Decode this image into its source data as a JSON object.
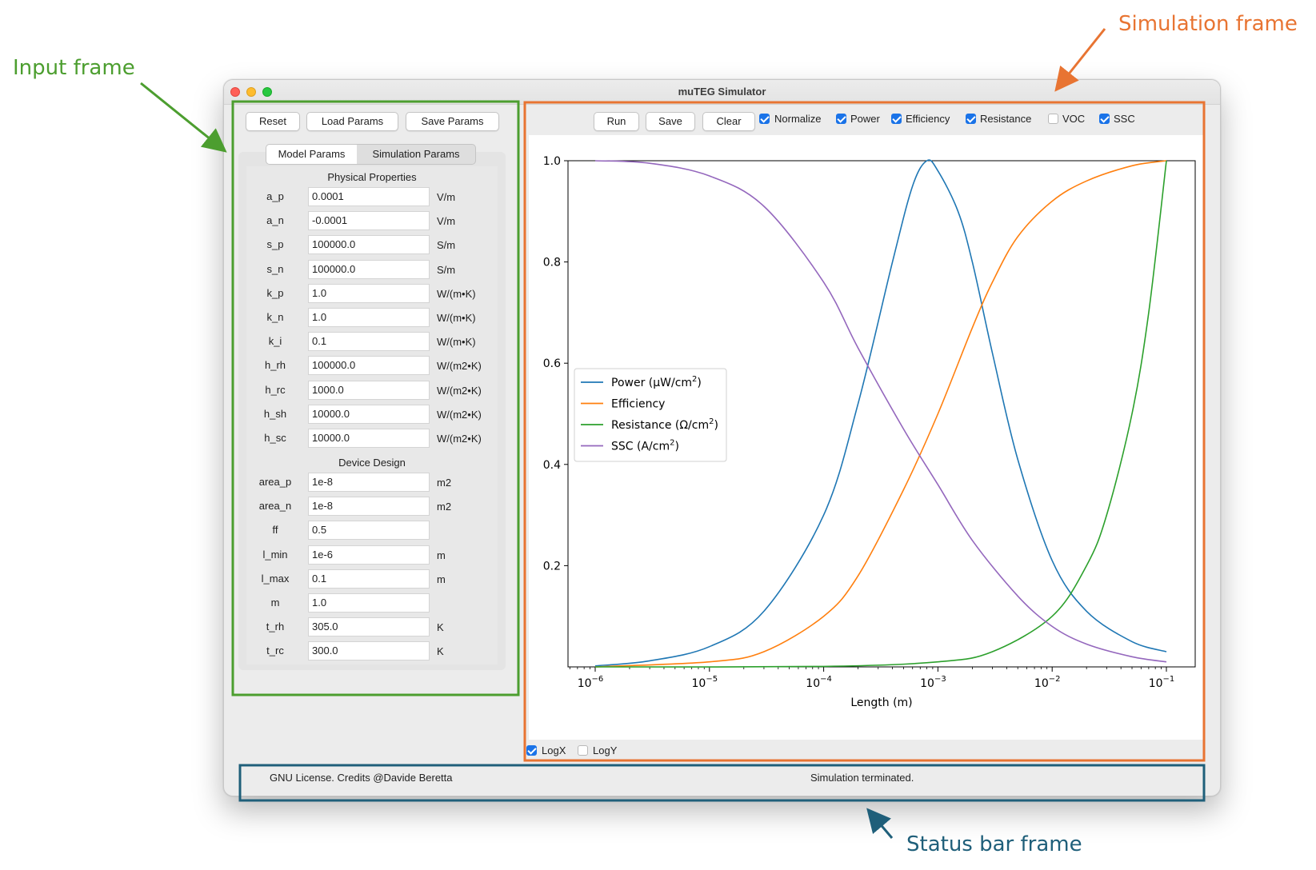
{
  "annotations": {
    "input_frame": "Input frame",
    "simulation_frame": "Simulation frame",
    "status_bar_frame": "Status bar frame",
    "colors": {
      "input": "#4c9e2f",
      "simulation": "#e87432",
      "status": "#1f5f7a"
    }
  },
  "window": {
    "title": "muTEG Simulator"
  },
  "input": {
    "buttons": {
      "reset": "Reset",
      "load": "Load Params",
      "save": "Save Params"
    },
    "tabs": {
      "model": "Model Params",
      "simulation": "Simulation Params",
      "active": "model"
    },
    "physical_header": "Physical Properties",
    "design_header": "Device Design",
    "physical": [
      {
        "label": "a_p",
        "value": "0.0001",
        "unit": "V/m"
      },
      {
        "label": "a_n",
        "value": "-0.0001",
        "unit": "V/m"
      },
      {
        "label": "s_p",
        "value": "100000.0",
        "unit": "S/m"
      },
      {
        "label": "s_n",
        "value": "100000.0",
        "unit": "S/m"
      },
      {
        "label": "k_p",
        "value": "1.0",
        "unit": "W/(m•K)"
      },
      {
        "label": "k_n",
        "value": "1.0",
        "unit": "W/(m•K)"
      },
      {
        "label": "k_i",
        "value": "0.1",
        "unit": "W/(m•K)"
      },
      {
        "label": "h_rh",
        "value": "100000.0",
        "unit": "W/(m2•K)"
      },
      {
        "label": "h_rc",
        "value": "1000.0",
        "unit": "W/(m2•K)"
      },
      {
        "label": "h_sh",
        "value": "10000.0",
        "unit": "W/(m2•K)"
      },
      {
        "label": "h_sc",
        "value": "10000.0",
        "unit": "W/(m2•K)"
      }
    ],
    "design": [
      {
        "label": "area_p",
        "value": "1e-8",
        "unit": "m2"
      },
      {
        "label": "area_n",
        "value": "1e-8",
        "unit": "m2"
      },
      {
        "label": "ff",
        "value": "0.5",
        "unit": ""
      },
      {
        "label": "l_min",
        "value": "1e-6",
        "unit": "m"
      },
      {
        "label": "l_max",
        "value": "0.1",
        "unit": "m"
      },
      {
        "label": "m",
        "value": "1.0",
        "unit": ""
      },
      {
        "label": "t_rh",
        "value": "305.0",
        "unit": "K"
      },
      {
        "label": "t_rc",
        "value": "300.0",
        "unit": "K"
      }
    ]
  },
  "simulation": {
    "buttons": {
      "run": "Run",
      "save": "Save",
      "clear": "Clear"
    },
    "checks": [
      {
        "label": "Normalize",
        "checked": true
      },
      {
        "label": "Power",
        "checked": true
      },
      {
        "label": "Efficiency",
        "checked": true
      },
      {
        "label": "Resistance",
        "checked": true
      },
      {
        "label": "VOC",
        "checked": false
      },
      {
        "label": "SSC",
        "checked": true
      }
    ],
    "logx": {
      "label": "LogX",
      "checked": true
    },
    "logy": {
      "label": "LogY",
      "checked": false
    }
  },
  "chart_data": {
    "type": "line",
    "xlabel": "Length (m)",
    "ylabel": "",
    "x_scale": "log",
    "xlim": [
      1e-06,
      0.1
    ],
    "ylim": [
      0,
      1.0
    ],
    "yticks": [
      "0.2",
      "0.4",
      "0.6",
      "0.8",
      "1.0"
    ],
    "xticks": [
      {
        "base": "10",
        "exp": "−6"
      },
      {
        "base": "10",
        "exp": "−5"
      },
      {
        "base": "10",
        "exp": "−4"
      },
      {
        "base": "10",
        "exp": "−3"
      },
      {
        "base": "10",
        "exp": "−2"
      },
      {
        "base": "10",
        "exp": "−1"
      }
    ],
    "legend_position": "center-left",
    "grid": false,
    "series": [
      {
        "name": "Power (μW/cm2)",
        "label_main": "Power (μW/cm",
        "label_sup": "2",
        "label_tail": ")",
        "color": "#1f77b4",
        "x": [
          1e-06,
          3e-06,
          1e-05,
          3e-05,
          0.0001,
          0.0002,
          0.0004,
          0.0006,
          0.0008,
          0.001,
          0.0015,
          0.002,
          0.003,
          0.005,
          0.01,
          0.02,
          0.05,
          0.1
        ],
        "y": [
          0.002,
          0.012,
          0.04,
          0.11,
          0.3,
          0.52,
          0.8,
          0.95,
          1.0,
          0.98,
          0.9,
          0.8,
          0.62,
          0.41,
          0.21,
          0.11,
          0.05,
          0.03
        ]
      },
      {
        "name": "Efficiency",
        "label_main": "Efficiency",
        "label_sup": "",
        "label_tail": "",
        "color": "#ff7f0e",
        "x": [
          1e-06,
          1e-05,
          3e-05,
          0.0001,
          0.0002,
          0.0005,
          0.001,
          0.002,
          0.003,
          0.005,
          0.01,
          0.02,
          0.05,
          0.1
        ],
        "y": [
          0.0,
          0.01,
          0.03,
          0.1,
          0.18,
          0.35,
          0.5,
          0.67,
          0.76,
          0.85,
          0.92,
          0.96,
          0.99,
          1.0
        ]
      },
      {
        "name": "Resistance (Ω/cm2)",
        "label_main": "Resistance (Ω/cm",
        "label_sup": "2",
        "label_tail": ")",
        "color": "#2ca02c",
        "x": [
          1e-06,
          0.0001,
          0.001,
          0.003,
          0.01,
          0.02,
          0.03,
          0.05,
          0.07,
          0.1
        ],
        "y": [
          0.0,
          0.001,
          0.01,
          0.03,
          0.1,
          0.2,
          0.3,
          0.5,
          0.7,
          1.0
        ]
      },
      {
        "name": "SSC (A/cm2)",
        "label_main": "SSC (A/cm",
        "label_sup": "2",
        "label_tail": ")",
        "color": "#9467bd",
        "x": [
          1e-06,
          3e-06,
          1e-05,
          3e-05,
          0.0001,
          0.0002,
          0.0005,
          0.001,
          0.002,
          0.005,
          0.01,
          0.02,
          0.05,
          0.1
        ],
        "y": [
          1.0,
          0.995,
          0.97,
          0.91,
          0.76,
          0.63,
          0.47,
          0.36,
          0.25,
          0.14,
          0.08,
          0.045,
          0.02,
          0.01
        ]
      }
    ]
  },
  "status": {
    "left": "GNU License. Credits @Davide Beretta",
    "center": "Simulation terminated."
  }
}
